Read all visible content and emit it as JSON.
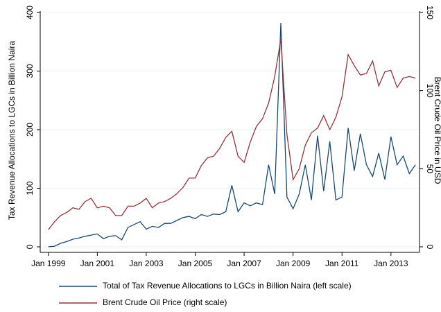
{
  "chart_data": {
    "type": "line",
    "x": [
      "1999-01",
      "1999-04",
      "1999-07",
      "1999-10",
      "2000-01",
      "2000-04",
      "2000-07",
      "2000-10",
      "2001-01",
      "2001-04",
      "2001-07",
      "2001-10",
      "2002-01",
      "2002-04",
      "2002-07",
      "2002-10",
      "2003-01",
      "2003-04",
      "2003-07",
      "2003-10",
      "2004-01",
      "2004-04",
      "2004-07",
      "2004-10",
      "2005-01",
      "2005-04",
      "2005-07",
      "2005-10",
      "2006-01",
      "2006-04",
      "2006-07",
      "2006-10",
      "2007-01",
      "2007-04",
      "2007-07",
      "2007-10",
      "2008-01",
      "2008-04",
      "2008-07",
      "2008-10",
      "2009-01",
      "2009-04",
      "2009-07",
      "2009-10",
      "2010-01",
      "2010-04",
      "2010-07",
      "2010-10",
      "2011-01",
      "2011-04",
      "2011-07",
      "2011-10",
      "2012-01",
      "2012-04",
      "2012-07",
      "2012-10",
      "2013-01",
      "2013-04",
      "2013-07",
      "2013-10",
      "2014-01"
    ],
    "series": [
      {
        "name": "Total of Tax Revenue Allocations to LGCs in Billion Naira (left scale)",
        "color": "#1a476f",
        "axis": "y",
        "values": [
          0,
          1,
          6,
          9,
          13,
          15,
          18,
          20,
          22,
          14,
          18,
          19,
          12,
          33,
          38,
          43,
          30,
          35,
          33,
          40,
          40,
          45,
          50,
          52,
          48,
          55,
          52,
          56,
          55,
          60,
          105,
          60,
          75,
          70,
          75,
          72,
          140,
          90,
          382,
          85,
          65,
          90,
          140,
          80,
          190,
          95,
          180,
          80,
          85,
          203,
          130,
          193,
          140,
          120,
          160,
          115,
          188,
          140,
          155,
          125,
          140
        ]
      },
      {
        "name": "Brent Crude Oil Price (right scale)",
        "color": "#90353b",
        "axis": "y2",
        "values": [
          11,
          16,
          20,
          22,
          25,
          24,
          29,
          31,
          25,
          26,
          25,
          20,
          20,
          26,
          26,
          28,
          31,
          25,
          28,
          29,
          31,
          34,
          38,
          44,
          44,
          52,
          57,
          58,
          63,
          70,
          74,
          58,
          54,
          67,
          77,
          82,
          92,
          109,
          133,
          72,
          43,
          50,
          65,
          73,
          76,
          84,
          75,
          83,
          96,
          123,
          116,
          110,
          111,
          119,
          103,
          112,
          113,
          102,
          108,
          109,
          108
        ]
      }
    ],
    "xlim": [
      "1998-09",
      "2014-03"
    ],
    "xticks": [
      {
        "value": "1999-01",
        "label": "Jan 1999"
      },
      {
        "value": "2001-01",
        "label": "Jan 2001"
      },
      {
        "value": "2003-01",
        "label": "Jan 2003"
      },
      {
        "value": "2005-01",
        "label": "Jan 2005"
      },
      {
        "value": "2007-01",
        "label": "Jan 2007"
      },
      {
        "value": "2009-01",
        "label": "Jan 2009"
      },
      {
        "value": "2011-01",
        "label": "Jan 2011"
      },
      {
        "value": "2013-01",
        "label": "Jan 2013"
      }
    ],
    "ylim": [
      0,
      400
    ],
    "yticks": [
      0,
      100,
      200,
      300,
      400
    ],
    "y2lim": [
      0,
      150
    ],
    "y2ticks": [
      0,
      50,
      100,
      150
    ],
    "ylabel": "Tax Revenue Allocations to LGCs in Billion Naira",
    "y2label": "Brent Crude Oil Price in USD",
    "grid": true,
    "legend": "bottom"
  }
}
